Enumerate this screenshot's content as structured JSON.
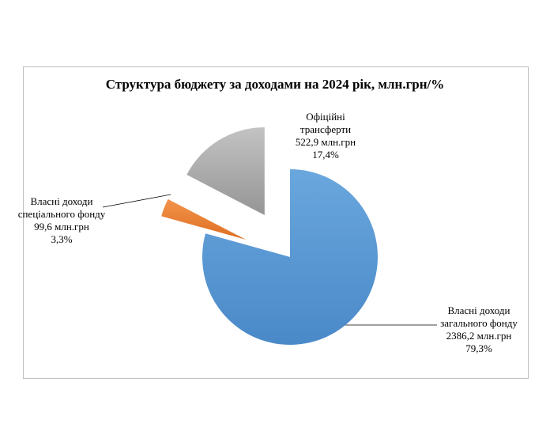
{
  "chart_data": {
    "type": "pie",
    "title": "Структура бюджету за доходами на 2024 рік, млн.грн/%",
    "categories": [
      "Власні доходи загального фонду",
      "Власні доходи спеціального фонду",
      "Офіційні трансферти"
    ],
    "values": [
      2386.2,
      99.6,
      522.9
    ],
    "value_labels": [
      "2386,2  млн.грн",
      "99,6  млн.грн",
      "522,9  млн.грн"
    ],
    "percents": [
      79.3,
      3.3,
      17.4
    ],
    "percent_labels": [
      "79,3%",
      "3,3%",
      "17,4%"
    ],
    "colors": [
      "#5b9bd5",
      "#ed7d31",
      "#a5a5a5"
    ]
  }
}
